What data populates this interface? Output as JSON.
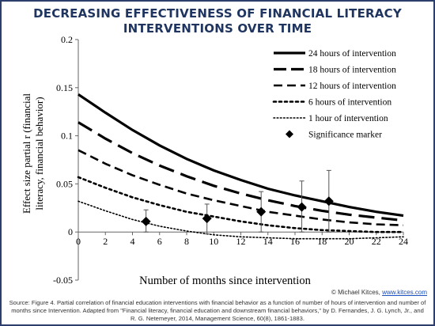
{
  "title_line1": "DECREASING EFFECTIVENESS OF FINANCIAL LITERACY",
  "title_line2": "INTERVENTIONS OVER TIME",
  "credit_prefix": "© Michael Kitces, ",
  "credit_link": "www.kitces.com",
  "source_text": "Source: Figure 4. Partial correlation of financial education interventions with financial behavior as a function of number of hours of intervention and number of months since Intervention. Adapted from \"Financial literacy, financial education and downstream financial behaviors,\" by D. Fernandes, J. G. Lynch, Jr., and R. G. Netemeyer, 2014, Management Science, 60(8), 1861-1883.",
  "colors": {
    "title": "#1f3560",
    "line": "#000000",
    "border": "#2c3e6b",
    "link": "#1a4fbf"
  },
  "chart_data": {
    "type": "line",
    "title": "",
    "xlabel": "Number of months since intervention",
    "ylabel": "Effect size partial r (financial literacy, financial behavior)",
    "xlim": [
      0,
      24
    ],
    "ylim": [
      -0.05,
      0.2
    ],
    "x_ticks": [
      0,
      2,
      4,
      6,
      8,
      10,
      12,
      14,
      16,
      18,
      20,
      22,
      24
    ],
    "y_ticks": [
      -0.05,
      0,
      0.05,
      0.1,
      0.15,
      0.2
    ],
    "y_tick_labels": [
      "-0.05",
      "0",
      "0.05",
      "0.1",
      "0.15",
      "0.2"
    ],
    "legend_position": "top-right",
    "grid": false,
    "x": [
      0,
      2,
      4,
      6,
      8,
      10,
      12,
      14,
      16,
      18,
      20,
      22,
      24
    ],
    "series": [
      {
        "name": "24 hours of intervention",
        "style": "solid",
        "width": 3.2,
        "values": [
          0.143,
          0.124,
          0.106,
          0.09,
          0.076,
          0.064,
          0.054,
          0.045,
          0.038,
          0.032,
          0.026,
          0.021,
          0.017
        ]
      },
      {
        "name": "18 hours of intervention",
        "style": "longdash",
        "width": 3.2,
        "values": [
          0.114,
          0.097,
          0.082,
          0.069,
          0.058,
          0.048,
          0.04,
          0.033,
          0.027,
          0.022,
          0.018,
          0.015,
          0.012
        ]
      },
      {
        "name": "12 hours of intervention",
        "style": "dash",
        "width": 2.6,
        "values": [
          0.085,
          0.071,
          0.059,
          0.049,
          0.04,
          0.033,
          0.027,
          0.021,
          0.017,
          0.013,
          0.01,
          0.008,
          0.007
        ]
      },
      {
        "name": "6 hours of intervention",
        "style": "dot",
        "width": 2.6,
        "values": [
          0.057,
          0.046,
          0.036,
          0.028,
          0.021,
          0.016,
          0.011,
          0.007,
          0.004,
          0.002,
          0.001,
          0.0,
          0.0
        ]
      },
      {
        "name": "1 hour of intervention",
        "style": "finedot",
        "width": 1.6,
        "values": [
          0.032,
          0.022,
          0.013,
          0.006,
          0.001,
          -0.003,
          -0.005,
          -0.006,
          -0.007,
          -0.007,
          -0.007,
          -0.006,
          -0.005
        ]
      }
    ],
    "significance_legend": "Significance marker",
    "significance_markers": [
      {
        "x": 5.0,
        "y": 0.011,
        "err_low": 0.0,
        "err_high": 0.023
      },
      {
        "x": 9.5,
        "y": 0.014,
        "err_low": -0.002,
        "err_high": 0.029
      },
      {
        "x": 13.5,
        "y": 0.021,
        "err_low": 0.0,
        "err_high": 0.042
      },
      {
        "x": 16.5,
        "y": 0.026,
        "err_low": 0.0,
        "err_high": 0.053
      },
      {
        "x": 18.5,
        "y": 0.032,
        "err_low": 0.0,
        "err_high": 0.064
      }
    ]
  }
}
